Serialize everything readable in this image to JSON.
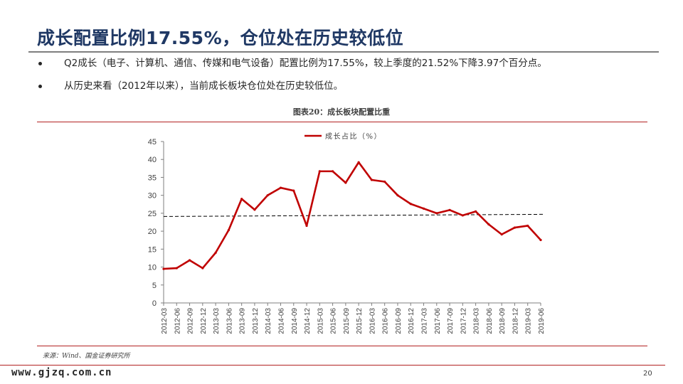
{
  "slide": {
    "title": "成长配置比例17.55%，仓位处在历史较低位",
    "bullets": [
      "Q2成长（电子、计算机、通信、传媒和电气设备）配置比例为17.55%，较上季度的21.52%下降3.97个百分点。",
      "从历史来看（2012年以来），当前成长板块仓位处在历史较低位。"
    ],
    "figure_caption": "图表20：成长板块配置比重",
    "source": "来源：Wind、国金证券研究所",
    "footer_site": "www.gjzq.com.cn",
    "page_number": "20"
  },
  "colors": {
    "title": "#1f3864",
    "series": "#c00000",
    "rule": "#b22222",
    "reference": "#000000"
  },
  "chart_data": {
    "type": "line",
    "title": "",
    "xlabel": "",
    "ylabel": "",
    "ylim": [
      0,
      45
    ],
    "yticks": [
      0,
      5,
      10,
      15,
      20,
      25,
      30,
      35,
      40,
      45
    ],
    "grid": false,
    "legend_position": "top-center",
    "categories": [
      "2012-03",
      "2012-06",
      "2012-09",
      "2012-12",
      "2013-03",
      "2013-06",
      "2013-09",
      "2013-12",
      "2014-03",
      "2014-06",
      "2014-09",
      "2014-12",
      "2015-03",
      "2015-06",
      "2015-09",
      "2015-12",
      "2016-03",
      "2016-06",
      "2016-09",
      "2016-12",
      "2017-03",
      "2017-06",
      "2017-09",
      "2017-12",
      "2018-03",
      "2018-06",
      "2018-09",
      "2018-12",
      "2019-03",
      "2019-06"
    ],
    "series": [
      {
        "name": "成长占比（%）",
        "values": [
          9.5,
          9.7,
          11.9,
          9.7,
          14.0,
          20.3,
          29.0,
          26.0,
          30.0,
          32.1,
          31.3,
          21.5,
          36.7,
          36.7,
          33.5,
          39.2,
          34.3,
          33.8,
          30.0,
          27.6,
          26.3,
          25.0,
          25.9,
          24.4,
          25.5,
          21.9,
          19.1,
          21.0,
          21.52,
          17.55
        ]
      }
    ],
    "reference_line": {
      "style": "dashed",
      "start_value": 24.1,
      "end_value": 24.7
    }
  }
}
